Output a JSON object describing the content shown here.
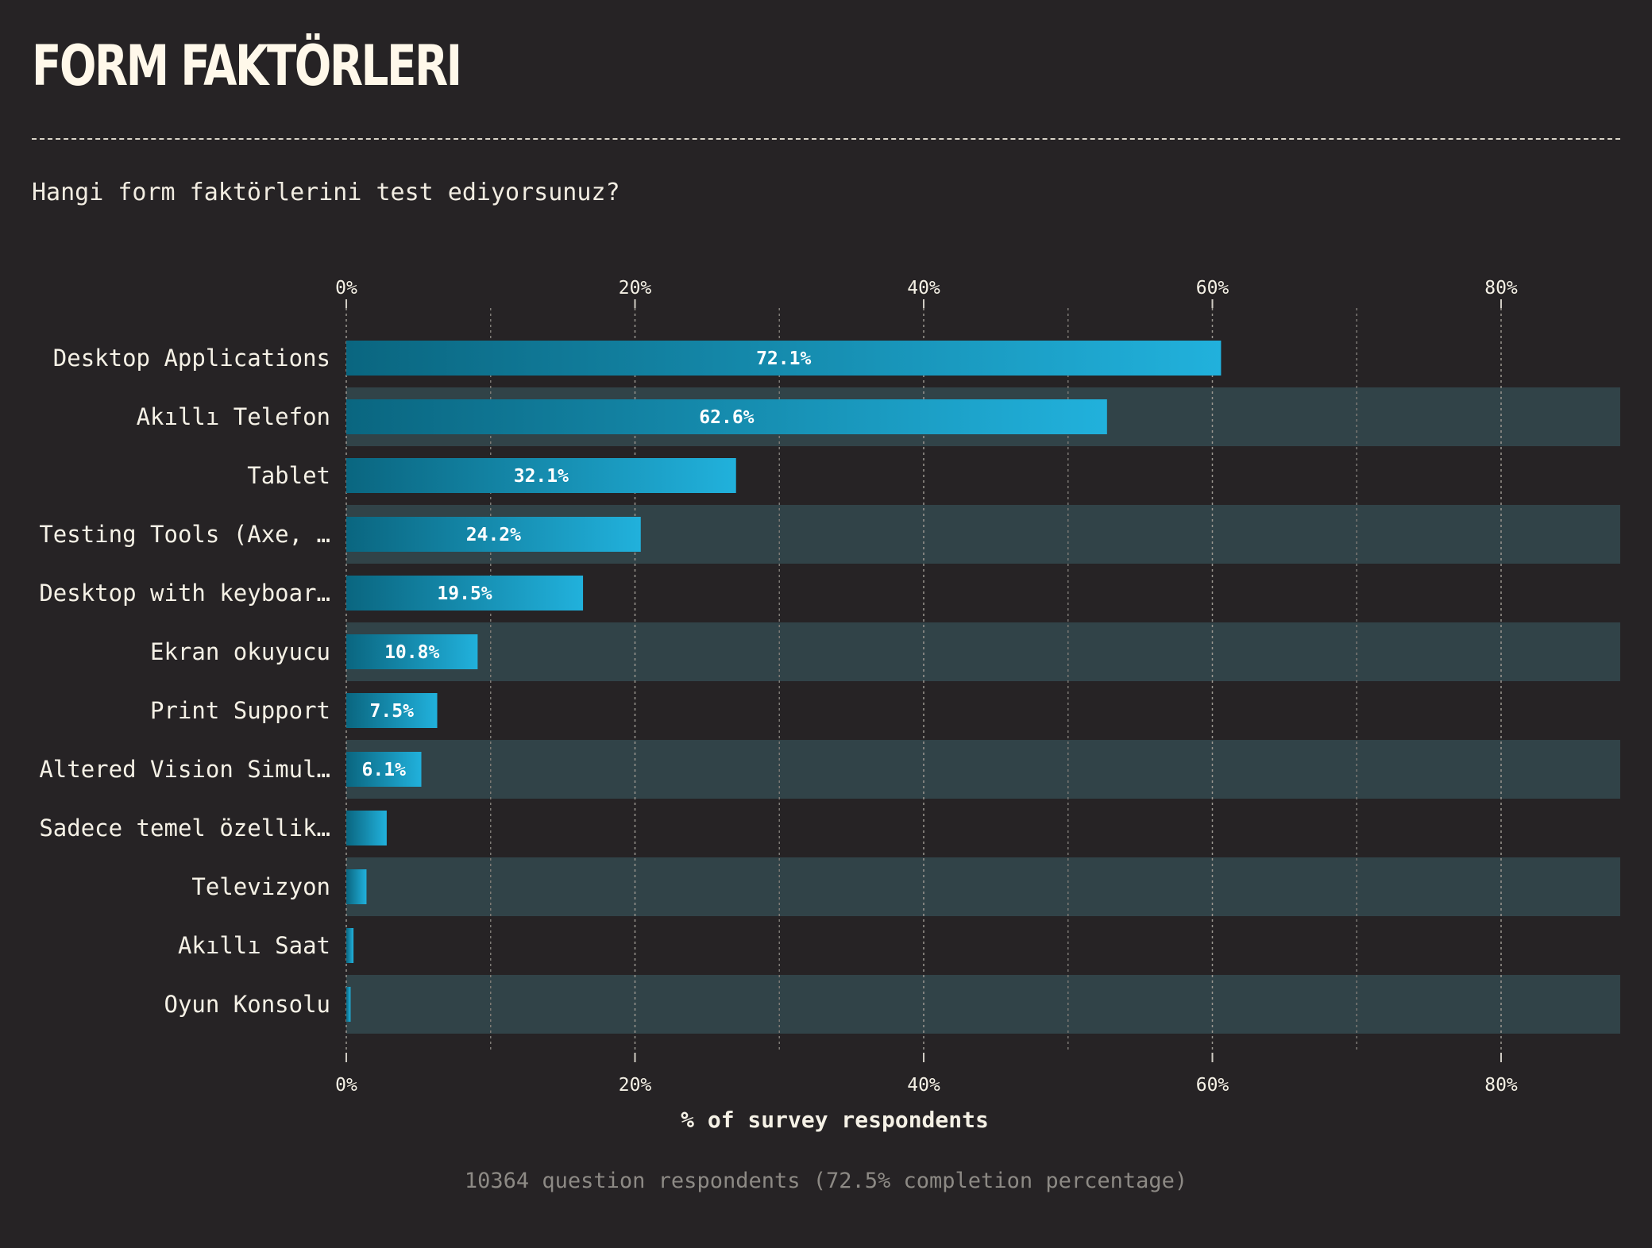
{
  "title": "FORM FAKTÖRLERI",
  "subtitle": "Hangi form faktörlerini test ediyorsunuz?",
  "footer": "10364 question respondents (72.5% completion percentage)",
  "colors": {
    "background": "#262325",
    "bar_start": "#0a6680",
    "bar_end": "#21b1dc",
    "stripe": "#314348",
    "text": "#f5f1e6"
  },
  "chart_data": {
    "type": "bar",
    "orientation": "horizontal",
    "xlabel": "% of survey respondents",
    "xlim": [
      0,
      88
    ],
    "xticks": [
      "0%",
      "20%",
      "40%",
      "60%",
      "80%"
    ],
    "grid": true,
    "categories": [
      "Desktop Applications",
      "Akıllı Telefon",
      "Tablet",
      "Testing Tools (Axe, …",
      "Desktop with keyboar…",
      "Ekran okuyucu",
      "Print Support",
      "Altered Vision Simul…",
      "Sadece temel özellik…",
      "Televizyon",
      "Akıllı Saat",
      "Oyun Konsolu"
    ],
    "values": [
      60.6,
      52.7,
      27.0,
      20.4,
      16.4,
      9.1,
      6.3,
      5.2,
      2.8,
      1.4,
      0.5,
      0.3
    ],
    "data_labels": [
      "72.1%",
      "62.6%",
      "32.1%",
      "24.2%",
      "19.5%",
      "10.8%",
      "7.5%",
      "6.1%",
      "",
      "",
      "",
      ""
    ]
  }
}
